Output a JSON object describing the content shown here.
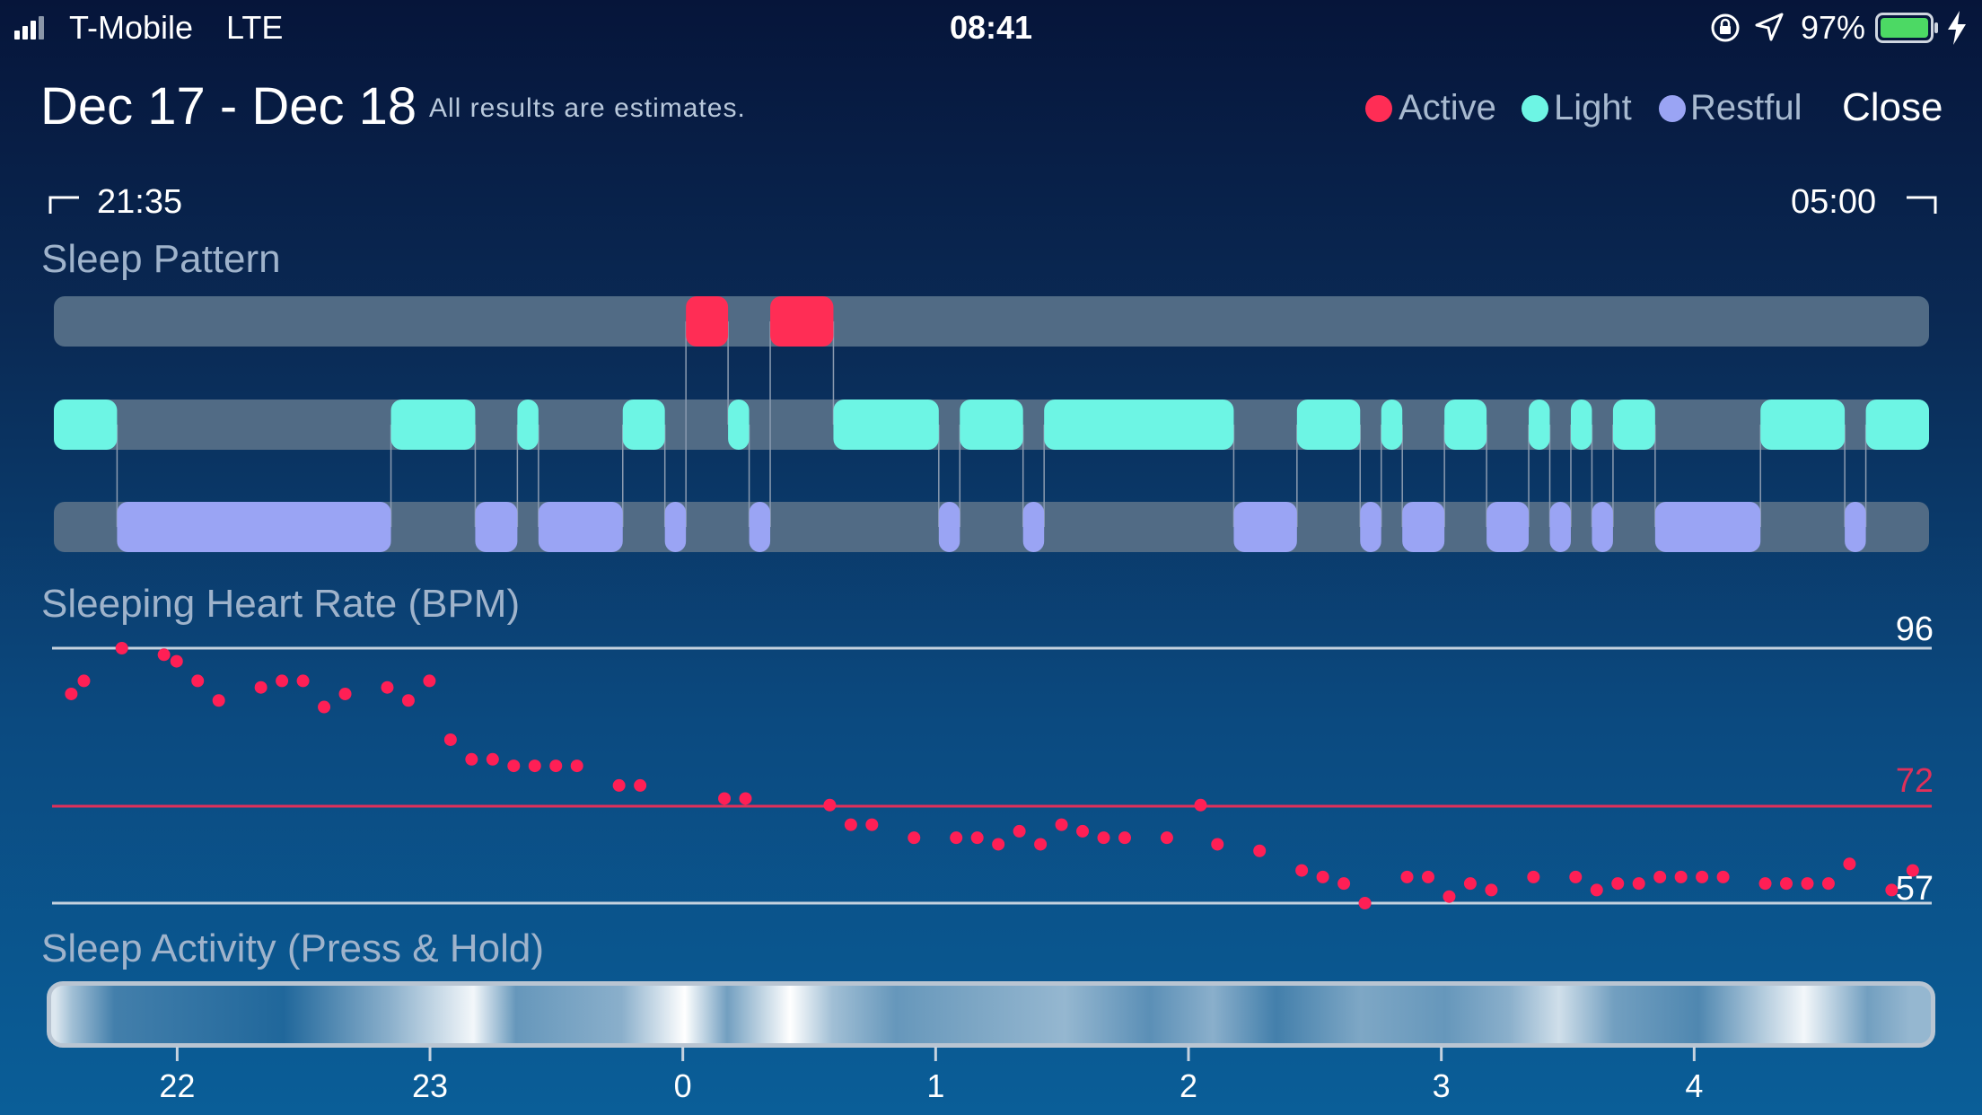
{
  "status_bar": {
    "carrier": "T-Mobile",
    "network": "LTE",
    "time": "08:41",
    "battery_percent": "97%",
    "icons": [
      "signal-icon",
      "orientation-lock-icon",
      "location-icon",
      "battery-icon",
      "charging-icon"
    ]
  },
  "header": {
    "title": "Dec 17 - Dec 18",
    "subtitle": "All results are estimates.",
    "close_label": "Close"
  },
  "legend": [
    {
      "label": "Active",
      "color": "#ff2d55"
    },
    {
      "label": "Light",
      "color": "#6df5e4"
    },
    {
      "label": "Restful",
      "color": "#9aa4f4"
    }
  ],
  "range": {
    "start": "21:35",
    "end": "05:00"
  },
  "sections": {
    "sleep_pattern": "Sleep Pattern",
    "heart_rate": "Sleeping Heart Rate (BPM)",
    "sleep_activity": "Sleep Activity (Press & Hold)"
  },
  "colors": {
    "active": "#ff2d55",
    "light": "#6df5e4",
    "restful": "#9aa4f4",
    "track": "#516b85",
    "hr_dot": "#ff1f55",
    "avg_line": "#e0305a"
  },
  "chart_data": [
    {
      "type": "timeline",
      "title": "Sleep Pattern",
      "time_range_hours": [
        21.5833,
        5.0
      ],
      "segments": [
        {
          "state": "Light",
          "start": "21:35",
          "end": "21:50"
        },
        {
          "state": "Restful",
          "start": "21:50",
          "end": "22:55"
        },
        {
          "state": "Light",
          "start": "22:55",
          "end": "23:15"
        },
        {
          "state": "Restful",
          "start": "23:15",
          "end": "23:25"
        },
        {
          "state": "Light",
          "start": "23:25",
          "end": "23:30"
        },
        {
          "state": "Restful",
          "start": "23:30",
          "end": "23:50"
        },
        {
          "state": "Light",
          "start": "23:50",
          "end": "00:00"
        },
        {
          "state": "Restful",
          "start": "00:00",
          "end": "00:05"
        },
        {
          "state": "Active",
          "start": "00:05",
          "end": "00:15"
        },
        {
          "state": "Light",
          "start": "00:15",
          "end": "00:20"
        },
        {
          "state": "Restful",
          "start": "00:20",
          "end": "00:25"
        },
        {
          "state": "Active",
          "start": "00:25",
          "end": "00:40"
        },
        {
          "state": "Light",
          "start": "00:40",
          "end": "01:05"
        },
        {
          "state": "Restful",
          "start": "01:05",
          "end": "01:10"
        },
        {
          "state": "Light",
          "start": "01:10",
          "end": "01:25"
        },
        {
          "state": "Restful",
          "start": "01:25",
          "end": "01:30"
        },
        {
          "state": "Light",
          "start": "01:30",
          "end": "02:15"
        },
        {
          "state": "Restful",
          "start": "02:15",
          "end": "02:30"
        },
        {
          "state": "Light",
          "start": "02:30",
          "end": "02:45"
        },
        {
          "state": "Restful",
          "start": "02:45",
          "end": "02:50"
        },
        {
          "state": "Light",
          "start": "02:50",
          "end": "02:55"
        },
        {
          "state": "Restful",
          "start": "02:55",
          "end": "03:05"
        },
        {
          "state": "Light",
          "start": "03:05",
          "end": "03:15"
        },
        {
          "state": "Restful",
          "start": "03:15",
          "end": "03:25"
        },
        {
          "state": "Light",
          "start": "03:25",
          "end": "03:30"
        },
        {
          "state": "Restful",
          "start": "03:30",
          "end": "03:35"
        },
        {
          "state": "Light",
          "start": "03:35",
          "end": "03:40"
        },
        {
          "state": "Restful",
          "start": "03:40",
          "end": "03:45"
        },
        {
          "state": "Light",
          "start": "03:45",
          "end": "03:55"
        },
        {
          "state": "Restful",
          "start": "03:55",
          "end": "04:20"
        },
        {
          "state": "Light",
          "start": "04:20",
          "end": "04:40"
        },
        {
          "state": "Restful",
          "start": "04:40",
          "end": "04:45"
        },
        {
          "state": "Light",
          "start": "04:45",
          "end": "05:00"
        }
      ]
    },
    {
      "type": "scatter",
      "title": "Sleeping Heart Rate (BPM)",
      "ylim": [
        57,
        96
      ],
      "y_labels": {
        "max": "96",
        "average": "72",
        "min": "57"
      },
      "average": 72,
      "points": [
        {
          "t": "21:37",
          "bpm": 89
        },
        {
          "t": "21:40",
          "bpm": 91
        },
        {
          "t": "21:49",
          "bpm": 96
        },
        {
          "t": "21:59",
          "bpm": 95
        },
        {
          "t": "22:02",
          "bpm": 94
        },
        {
          "t": "22:07",
          "bpm": 91
        },
        {
          "t": "22:12",
          "bpm": 88
        },
        {
          "t": "22:22",
          "bpm": 90
        },
        {
          "t": "22:27",
          "bpm": 91
        },
        {
          "t": "22:32",
          "bpm": 91
        },
        {
          "t": "22:37",
          "bpm": 87
        },
        {
          "t": "22:42",
          "bpm": 89
        },
        {
          "t": "22:52",
          "bpm": 90
        },
        {
          "t": "22:57",
          "bpm": 88
        },
        {
          "t": "23:02",
          "bpm": 91
        },
        {
          "t": "23:07",
          "bpm": 82
        },
        {
          "t": "23:12",
          "bpm": 79
        },
        {
          "t": "23:17",
          "bpm": 79
        },
        {
          "t": "23:22",
          "bpm": 78
        },
        {
          "t": "23:27",
          "bpm": 78
        },
        {
          "t": "23:32",
          "bpm": 78
        },
        {
          "t": "23:37",
          "bpm": 78
        },
        {
          "t": "23:47",
          "bpm": 75
        },
        {
          "t": "23:52",
          "bpm": 75
        },
        {
          "t": "00:12",
          "bpm": 73
        },
        {
          "t": "00:17",
          "bpm": 73
        },
        {
          "t": "00:37",
          "bpm": 72
        },
        {
          "t": "00:42",
          "bpm": 69
        },
        {
          "t": "00:47",
          "bpm": 69
        },
        {
          "t": "00:57",
          "bpm": 67
        },
        {
          "t": "01:07",
          "bpm": 67
        },
        {
          "t": "01:12",
          "bpm": 67
        },
        {
          "t": "01:17",
          "bpm": 66
        },
        {
          "t": "01:22",
          "bpm": 68
        },
        {
          "t": "01:27",
          "bpm": 66
        },
        {
          "t": "01:32",
          "bpm": 69
        },
        {
          "t": "01:37",
          "bpm": 68
        },
        {
          "t": "01:42",
          "bpm": 67
        },
        {
          "t": "01:47",
          "bpm": 67
        },
        {
          "t": "01:57",
          "bpm": 67
        },
        {
          "t": "02:05",
          "bpm": 72
        },
        {
          "t": "02:09",
          "bpm": 66
        },
        {
          "t": "02:19",
          "bpm": 65
        },
        {
          "t": "02:29",
          "bpm": 62
        },
        {
          "t": "02:34",
          "bpm": 61
        },
        {
          "t": "02:39",
          "bpm": 60
        },
        {
          "t": "02:44",
          "bpm": 57
        },
        {
          "t": "02:54",
          "bpm": 61
        },
        {
          "t": "02:59",
          "bpm": 61
        },
        {
          "t": "03:04",
          "bpm": 58
        },
        {
          "t": "03:09",
          "bpm": 60
        },
        {
          "t": "03:14",
          "bpm": 59
        },
        {
          "t": "03:24",
          "bpm": 61
        },
        {
          "t": "03:34",
          "bpm": 61
        },
        {
          "t": "03:39",
          "bpm": 59
        },
        {
          "t": "03:44",
          "bpm": 60
        },
        {
          "t": "03:49",
          "bpm": 60
        },
        {
          "t": "03:54",
          "bpm": 61
        },
        {
          "t": "03:59",
          "bpm": 61
        },
        {
          "t": "04:04",
          "bpm": 61
        },
        {
          "t": "04:09",
          "bpm": 61
        },
        {
          "t": "04:19",
          "bpm": 60
        },
        {
          "t": "04:24",
          "bpm": 60
        },
        {
          "t": "04:29",
          "bpm": 60
        },
        {
          "t": "04:34",
          "bpm": 60
        },
        {
          "t": "04:39",
          "bpm": 63
        },
        {
          "t": "04:49",
          "bpm": 59
        },
        {
          "t": "04:54",
          "bpm": 62
        }
      ]
    },
    {
      "type": "heatmap",
      "title": "Sleep Activity (Press & Hold)",
      "x_ticks": [
        "22",
        "23",
        "0",
        "1",
        "2",
        "3",
        "4"
      ],
      "tick_hours": [
        22,
        23,
        24,
        25,
        26,
        27,
        28
      ],
      "intensity": [
        {
          "t": "21:36",
          "v": 0.85
        },
        {
          "t": "21:40",
          "v": 0.6
        },
        {
          "t": "21:50",
          "v": 0.2
        },
        {
          "t": "22:30",
          "v": 0.05
        },
        {
          "t": "22:55",
          "v": 0.5
        },
        {
          "t": "23:15",
          "v": 0.95
        },
        {
          "t": "23:25",
          "v": 0.35
        },
        {
          "t": "23:50",
          "v": 0.5
        },
        {
          "t": "00:05",
          "v": 1.0
        },
        {
          "t": "00:15",
          "v": 0.4
        },
        {
          "t": "00:30",
          "v": 1.0
        },
        {
          "t": "00:40",
          "v": 0.6
        },
        {
          "t": "00:55",
          "v": 0.35
        },
        {
          "t": "01:15",
          "v": 0.45
        },
        {
          "t": "01:35",
          "v": 0.55
        },
        {
          "t": "01:55",
          "v": 0.3
        },
        {
          "t": "02:10",
          "v": 0.5
        },
        {
          "t": "02:25",
          "v": 0.2
        },
        {
          "t": "02:45",
          "v": 0.45
        },
        {
          "t": "03:05",
          "v": 0.35
        },
        {
          "t": "03:20",
          "v": 0.5
        },
        {
          "t": "03:32",
          "v": 0.8
        },
        {
          "t": "03:45",
          "v": 0.4
        },
        {
          "t": "04:05",
          "v": 0.25
        },
        {
          "t": "04:30",
          "v": 0.95
        },
        {
          "t": "04:45",
          "v": 0.4
        },
        {
          "t": "04:55",
          "v": 0.55
        }
      ]
    }
  ]
}
